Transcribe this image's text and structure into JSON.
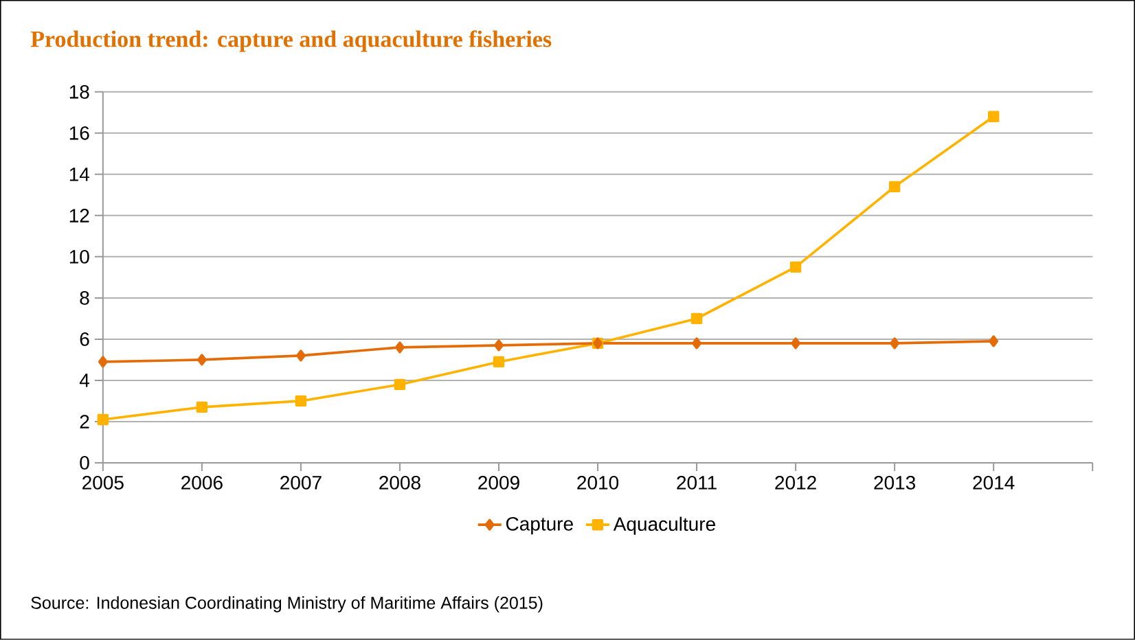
{
  "chart_data": {
    "type": "line",
    "title": "Production trend: capture and aquaculture fisheries",
    "x": [
      2005,
      2006,
      2007,
      2008,
      2009,
      2010,
      2011,
      2012,
      2013,
      2014
    ],
    "series": [
      {
        "name": "Capture",
        "color": "#e36c09",
        "marker": "diamond",
        "values": [
          4.9,
          5.0,
          5.2,
          5.6,
          5.7,
          5.8,
          5.8,
          5.8,
          5.8,
          5.9
        ]
      },
      {
        "name": "Aquaculture",
        "color": "#ffb300",
        "marker": "square",
        "values": [
          2.1,
          2.7,
          3.0,
          3.8,
          4.9,
          5.8,
          7.0,
          9.5,
          13.4,
          16.8
        ]
      }
    ],
    "xlim": [
      2005,
      2015
    ],
    "xticks": [
      2005,
      2006,
      2007,
      2008,
      2009,
      2010,
      2011,
      2012,
      2013,
      2014,
      {
        "value": 2015,
        "label": null
      }
    ],
    "ylim": [
      0,
      18
    ],
    "yticks": [
      0,
      2,
      4,
      6,
      8,
      10,
      12,
      14,
      16,
      18
    ],
    "grid": "y",
    "legend": "bottom",
    "annotations": [
      "Source: Indonesian Coordinating Ministry of Maritime Affairs (2015)"
    ]
  }
}
